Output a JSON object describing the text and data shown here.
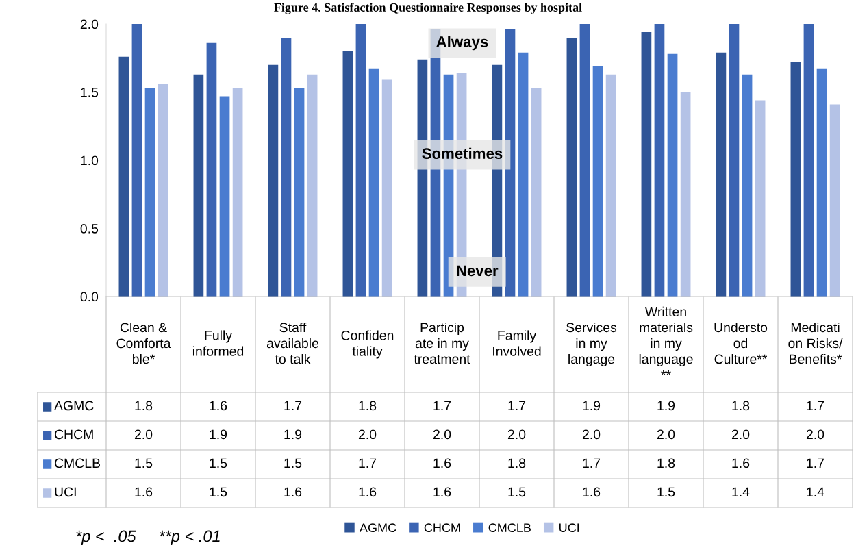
{
  "chart_data": {
    "type": "bar",
    "title": "Figure 4. Satisfaction Questionnaire Responses by hospital",
    "categories": [
      "Clean & Comfortable*",
      "Fully informed",
      "Staff available to talk",
      "Confidentiality",
      "Participate in my treatment",
      "Family Involved",
      "Services in my langage",
      "Written materials in my language **",
      "Understood Culture**",
      "Medication Risks/ Benefits*"
    ],
    "series": [
      {
        "name": "AGMC",
        "color": "#2f5597",
        "values": [
          1.76,
          1.63,
          1.7,
          1.8,
          1.74,
          1.7,
          1.9,
          1.94,
          1.79,
          1.72
        ],
        "value_labels": [
          "1.8",
          "1.6",
          "1.7",
          "1.8",
          "1.7",
          "1.7",
          "1.9",
          "1.9",
          "1.8",
          "1.7"
        ]
      },
      {
        "name": "CHCM",
        "color": "#3b64b3",
        "values": [
          2.0,
          1.86,
          1.9,
          2.0,
          1.96,
          1.96,
          2.0,
          2.0,
          2.0,
          2.0
        ],
        "value_labels": [
          "2.0",
          "1.9",
          "1.9",
          "2.0",
          "2.0",
          "2.0",
          "2.0",
          "2.0",
          "2.0",
          "2.0"
        ]
      },
      {
        "name": "CMCLB",
        "color": "#4a7cd0",
        "values": [
          1.53,
          1.47,
          1.53,
          1.67,
          1.63,
          1.79,
          1.69,
          1.78,
          1.63,
          1.67
        ],
        "value_labels": [
          "1.5",
          "1.5",
          "1.5",
          "1.7",
          "1.6",
          "1.8",
          "1.7",
          "1.8",
          "1.6",
          "1.7"
        ]
      },
      {
        "name": "UCI",
        "color": "#b4c2e6",
        "values": [
          1.56,
          1.53,
          1.63,
          1.59,
          1.64,
          1.53,
          1.63,
          1.5,
          1.44,
          1.41
        ],
        "value_labels": [
          "1.6",
          "1.5",
          "1.6",
          "1.6",
          "1.6",
          "1.5",
          "1.6",
          "1.5",
          "1.4",
          "1.4"
        ]
      }
    ],
    "ylim": [
      0,
      2.0
    ],
    "yticks": [
      {
        "value": 0,
        "label": "0.0"
      },
      0.5,
      {
        "value": 1,
        "label": "1.0"
      },
      1.5,
      {
        "value": 2,
        "label": "2.0"
      }
    ],
    "annotations": [
      "Always",
      "Sometimes",
      "Never",
      "*p <  .05     **p < .01"
    ],
    "grid": false,
    "legend": "bottom"
  }
}
